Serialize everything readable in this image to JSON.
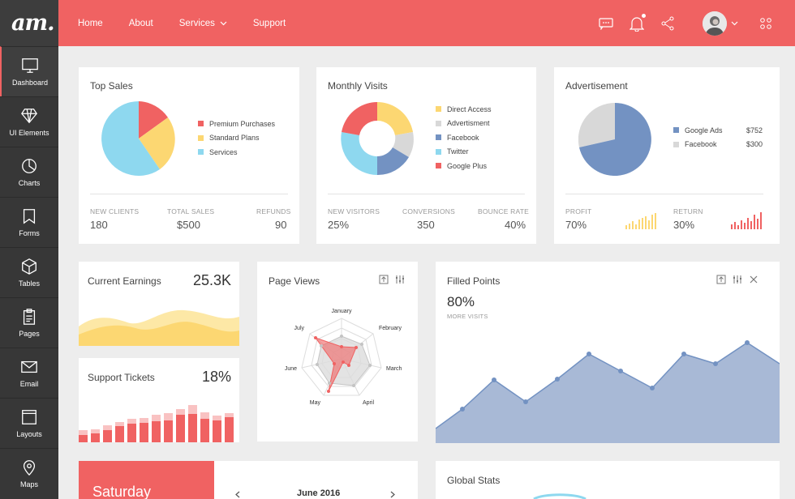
{
  "brand": {
    "logo": "am."
  },
  "sidebar": {
    "items": [
      {
        "label": "Dashboard",
        "icon": "monitor-icon"
      },
      {
        "label": "UI Elements",
        "icon": "diamond-icon"
      },
      {
        "label": "Charts",
        "icon": "pie-chart-icon"
      },
      {
        "label": "Forms",
        "icon": "bookmark-icon"
      },
      {
        "label": "Tables",
        "icon": "cube-icon"
      },
      {
        "label": "Pages",
        "icon": "clipboard-icon"
      },
      {
        "label": "Email",
        "icon": "envelope-icon"
      },
      {
        "label": "Layouts",
        "icon": "window-icon"
      },
      {
        "label": "Maps",
        "icon": "map-pin-icon"
      }
    ]
  },
  "topbar": {
    "nav": [
      "Home",
      "About",
      "Services",
      "Support"
    ]
  },
  "colors": {
    "accent": "#f06262",
    "yellow": "#fcd772",
    "blue": "#8ed8ef",
    "grey": "#d8d8d8",
    "navy": "#7392c2"
  },
  "top_sales": {
    "title": "Top Sales",
    "legend": [
      {
        "label": "Premium Purchases",
        "color": "#f06262"
      },
      {
        "label": "Standard Plans",
        "color": "#fcd772"
      },
      {
        "label": "Services",
        "color": "#8ed8ef"
      }
    ],
    "stats": [
      {
        "label": "NEW CLIENTS",
        "value": "180"
      },
      {
        "label": "TOTAL SALES",
        "value": "$500"
      },
      {
        "label": "REFUNDS",
        "value": "90"
      }
    ]
  },
  "monthly_visits": {
    "title": "Monthly Visits",
    "legend": [
      {
        "label": "Direct Access",
        "color": "#fcd772"
      },
      {
        "label": "Advertisment",
        "color": "#d8d8d8"
      },
      {
        "label": "Facebook",
        "color": "#7392c2"
      },
      {
        "label": "Twitter",
        "color": "#8ed8ef"
      },
      {
        "label": "Google Plus",
        "color": "#f06262"
      }
    ],
    "stats": [
      {
        "label": "NEW VISITORS",
        "value": "25%"
      },
      {
        "label": "CONVERSIONS",
        "value": "350"
      },
      {
        "label": "BOUNCE RATE",
        "value": "40%"
      }
    ]
  },
  "advertisement": {
    "title": "Advertisement",
    "legend": [
      {
        "label": "Google Ads",
        "value": "$752",
        "color": "#7392c2"
      },
      {
        "label": "Facebook",
        "value": "$300",
        "color": "#d8d8d8"
      }
    ],
    "stats": [
      {
        "label": "PROFIT",
        "value": "70%"
      },
      {
        "label": "RETURN",
        "value": "30%"
      }
    ]
  },
  "current_earnings": {
    "title": "Current Earnings",
    "value": "25.3K"
  },
  "support_tickets": {
    "title": "Support Tickets",
    "value": "18%"
  },
  "page_views": {
    "title": "Page Views",
    "axes": [
      "January",
      "February",
      "March",
      "April",
      "May",
      "June",
      "July"
    ]
  },
  "filled_points": {
    "title": "Filled Points",
    "value": "80%",
    "sub": "MORE VISITS"
  },
  "calendar": {
    "day": "Saturday",
    "month": "June 2016"
  },
  "global_stats": {
    "title": "Global Stats"
  }
}
